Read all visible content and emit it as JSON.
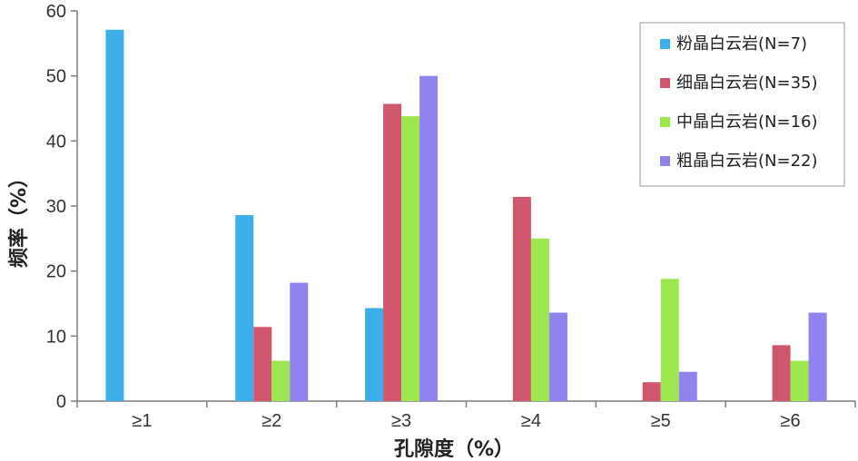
{
  "chart_data": {
    "type": "bar",
    "xlabel": "孔隙度（%）",
    "ylabel": "频率（%）",
    "ylim": [
      0,
      60
    ],
    "yticks": [
      "0",
      "10",
      "20",
      "30",
      "40",
      "50",
      "60"
    ],
    "categories": [
      "≥1",
      "≥2",
      "≥3",
      "≥4",
      "≥5",
      "≥6"
    ],
    "grid": false,
    "legend_position": "top-right",
    "series": [
      {
        "name": "粉晶白云岩(N=7)",
        "color": "#3daee9",
        "values": [
          57.1,
          28.6,
          14.3,
          0,
          0,
          0
        ]
      },
      {
        "name": "细晶白云岩(N=35)",
        "color": "#d0566e",
        "values": [
          0,
          11.4,
          45.7,
          31.4,
          2.9,
          8.6
        ]
      },
      {
        "name": "中晶白云岩(N=16)",
        "color": "#9ee64f",
        "values": [
          0,
          6.2,
          43.8,
          25.0,
          18.8,
          6.2
        ]
      },
      {
        "name": "粗晶白云岩(N=22)",
        "color": "#8f84ee",
        "values": [
          0,
          18.2,
          50.0,
          13.6,
          4.5,
          13.6
        ]
      }
    ]
  }
}
